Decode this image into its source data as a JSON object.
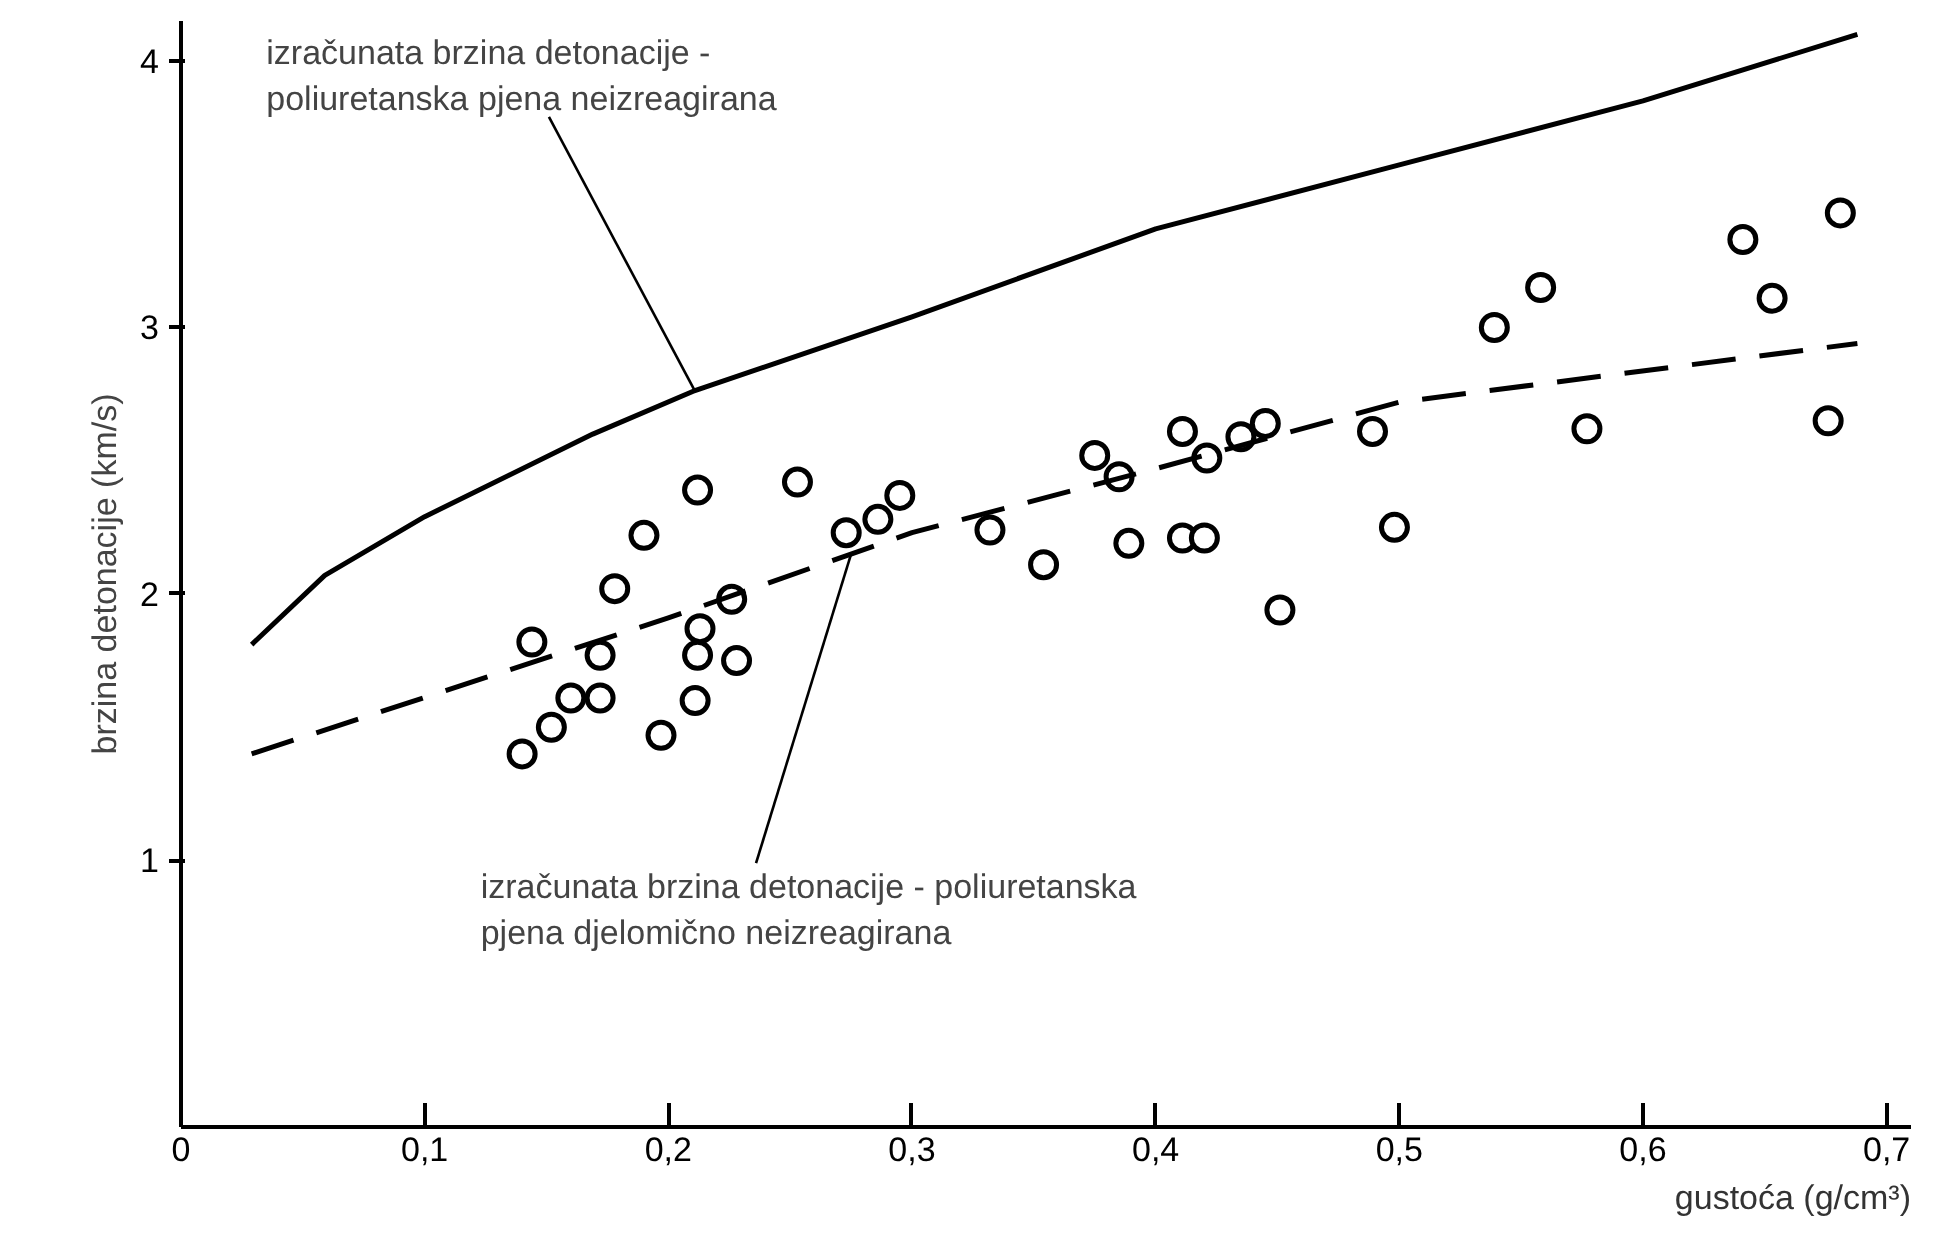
{
  "chart_data": {
    "type": "scatter",
    "xlabel": "gustoća (g/cm³)",
    "ylabel": "brzina detonacije (km/s)",
    "xlim": [
      0,
      0.71
    ],
    "ylim": [
      0,
      4.15
    ],
    "xticks": [
      {
        "value": 0,
        "label": "0"
      },
      {
        "value": 0.1,
        "label": "0,1"
      },
      {
        "value": 0.2,
        "label": "0,2"
      },
      {
        "value": 0.3,
        "label": "0,3"
      },
      {
        "value": 0.4,
        "label": "0,4"
      },
      {
        "value": 0.5,
        "label": "0,5"
      },
      {
        "value": 0.6,
        "label": "0,6"
      },
      {
        "value": 0.7,
        "label": "0,7"
      }
    ],
    "yticks": [
      1,
      2,
      3,
      4
    ],
    "grid": false,
    "series": [
      {
        "marker": "circle",
        "color": "#000000",
        "x": [
          0.14,
          0.144,
          0.152,
          0.16,
          0.172,
          0.172,
          0.178,
          0.19,
          0.197,
          0.211,
          0.212,
          0.213,
          0.212,
          0.226,
          0.228,
          0.253,
          0.273,
          0.286,
          0.295,
          0.332,
          0.354,
          0.375,
          0.385,
          0.389,
          0.411,
          0.411,
          0.42,
          0.421,
          0.435,
          0.445,
          0.451,
          0.489,
          0.498,
          0.539,
          0.558,
          0.577,
          0.641,
          0.653,
          0.676,
          0.681
        ],
        "values": [
          1.4,
          1.82,
          1.5,
          1.61,
          1.61,
          1.77,
          2.02,
          2.22,
          1.47,
          1.6,
          1.77,
          1.87,
          2.39,
          1.98,
          1.75,
          2.42,
          2.23,
          2.28,
          2.37,
          2.24,
          2.11,
          2.52,
          2.44,
          2.19,
          2.61,
          2.21,
          2.21,
          2.51,
          2.59,
          2.64,
          1.94,
          2.61,
          2.25,
          3.0,
          3.15,
          2.62,
          3.33,
          3.11,
          2.65,
          3.43
        ]
      },
      {
        "type": "line",
        "line_style": "solid",
        "marker": "none",
        "color": "#000000",
        "x": [
          0.029,
          0.059,
          0.1,
          0.169,
          0.21,
          0.3,
          0.4,
          0.5,
          0.6,
          0.688
        ],
        "values": [
          1.81,
          2.07,
          2.29,
          2.6,
          2.76,
          3.04,
          3.37,
          3.61,
          3.85,
          4.1
        ]
      },
      {
        "type": "line",
        "line_style": "dashed",
        "marker": "none",
        "color": "#000000",
        "x": [
          0.029,
          0.2,
          0.3,
          0.4,
          0.5,
          0.688
        ],
        "values": [
          1.4,
          1.91,
          2.23,
          2.47,
          2.72,
          2.94
        ]
      }
    ],
    "annotations": [
      {
        "text": "izračunata brzina detonacije -\npoliuretanska pjena neizreagirana",
        "x": 0.211,
        "y": 2.76
      },
      {
        "text": "izračunata brzina detonacije - poliuretanska\npjena djelomično neizreagirana",
        "x": 0.275,
        "y": 2.15
      }
    ]
  }
}
